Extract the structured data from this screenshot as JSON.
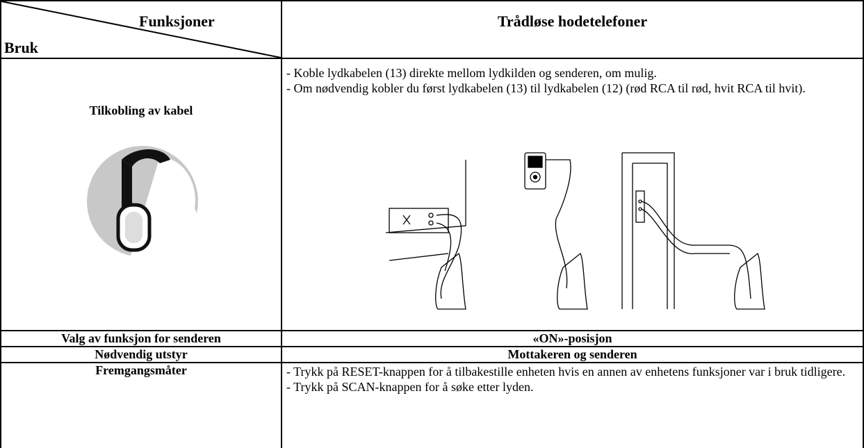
{
  "header": {
    "corner_top": "Funksjoner",
    "corner_bottom": "Bruk",
    "title": "Trådløse hodetelefoner"
  },
  "rows": [
    {
      "label": "Tilkobling av kabel",
      "lines": [
        "-  Koble lydkabelen (13) direkte mellom lydkilden og senderen, om mulig.",
        "-  Om nødvendig kobler du først lydkabelen (13) til lydkabelen (12) (rød RCA til rød, hvit RCA til hvit)."
      ]
    },
    {
      "label": "Valg av funksjon for senderen",
      "value": "«ON»-posisjon"
    },
    {
      "label": "Nødvendig utstyr",
      "value": "Mottakeren og senderen"
    },
    {
      "label": "Fremgangsmåter",
      "lines": [
        "-   Trykk på RESET-knappen for å tilbakestille enheten hvis en annen av enhetens funksjoner var i bruk tidligere.",
        "-   Trykk på SCAN-knappen for å søke etter lyden."
      ]
    }
  ]
}
